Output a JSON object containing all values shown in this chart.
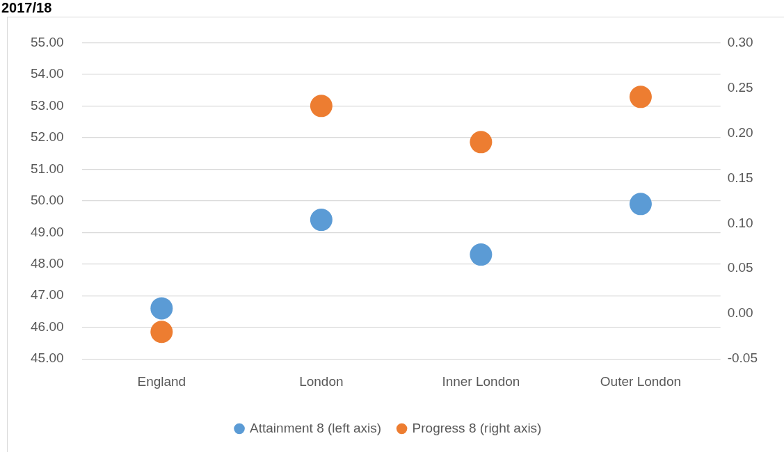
{
  "chart_data": {
    "type": "scatter",
    "title": "2017/18",
    "categories": [
      "England",
      "London",
      "Inner London",
      "Outer London"
    ],
    "series": [
      {
        "name": "Attainment 8 (left axis)",
        "color": "#5b9bd5",
        "values": [
          46.6,
          49.4,
          48.3,
          49.9
        ]
      },
      {
        "name": "Progress 8 (right axis)",
        "color": "#ed7d31",
        "axis": "y2",
        "values": [
          -0.02,
          0.23,
          0.19,
          0.24
        ]
      }
    ],
    "ylim": [
      45,
      55
    ],
    "yticks": [
      {
        "value": 45,
        "label": "45.00"
      },
      {
        "value": 46,
        "label": "46.00"
      },
      {
        "value": 47,
        "label": "47.00"
      },
      {
        "value": 48,
        "label": "48.00"
      },
      {
        "value": 49,
        "label": "49.00"
      },
      {
        "value": 50,
        "label": "50.00"
      },
      {
        "value": 51,
        "label": "51.00"
      },
      {
        "value": 52,
        "label": "52.00"
      },
      {
        "value": 53,
        "label": "53.00"
      },
      {
        "value": 54,
        "label": "54.00"
      },
      {
        "value": 55,
        "label": "55.00"
      }
    ],
    "y2lim": [
      -0.05,
      0.3
    ],
    "y2ticks": [
      -0.05,
      {
        "value": 0,
        "label": "0.00"
      },
      0.05,
      {
        "value": 0.1,
        "label": "0.10"
      },
      0.15,
      {
        "value": 0.2,
        "label": "0.20"
      },
      0.25,
      {
        "value": 0.3,
        "label": "0.30"
      }
    ],
    "grid": "y",
    "legend": "bottom",
    "marker": "circle"
  }
}
